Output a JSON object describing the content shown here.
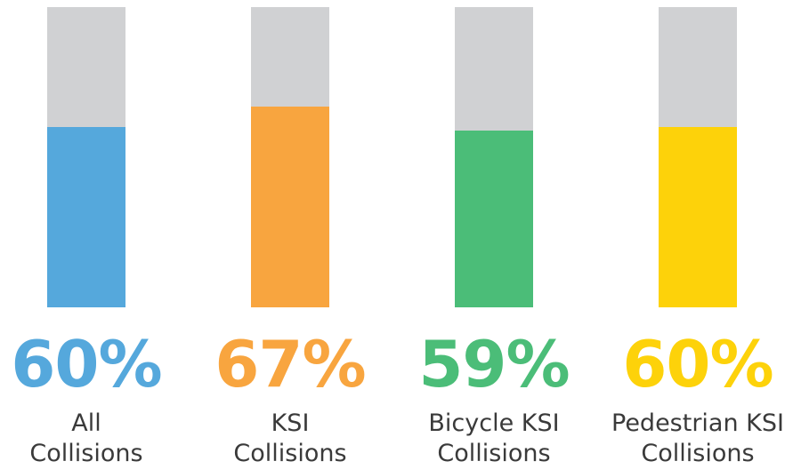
{
  "chart_data": {
    "type": "bar",
    "categories": [
      "All\nCollisions",
      "KSI\nCollisions",
      "Bicycle KSI\nCollisions",
      "Pedestrian KSI\nCollisions"
    ],
    "values": [
      60,
      67,
      59,
      60
    ],
    "value_labels": [
      "60%",
      "67%",
      "59%",
      "60%"
    ],
    "colors": [
      "#55a8dc",
      "#f8a53f",
      "#4bbd78",
      "#fdd20a"
    ],
    "track_color": "#d0d1d3",
    "ylim": [
      0,
      100
    ]
  }
}
